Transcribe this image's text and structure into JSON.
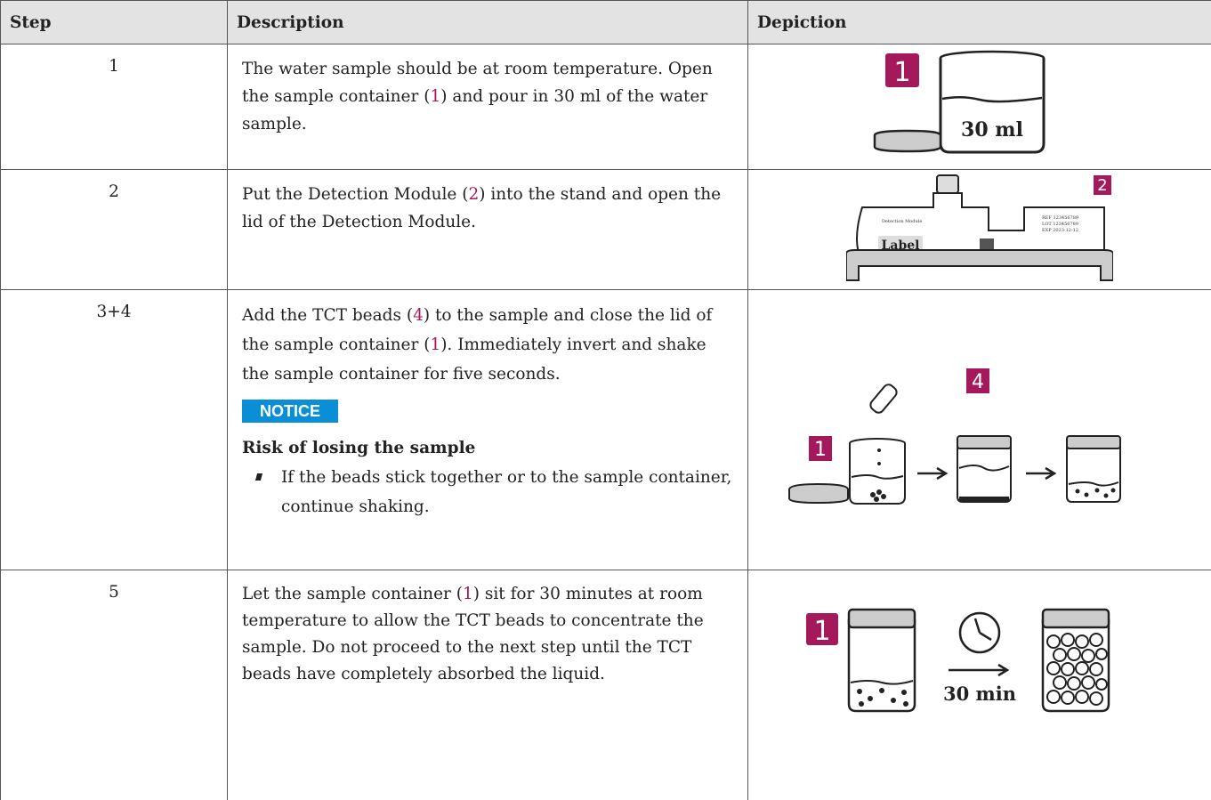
{
  "table": {
    "header": [
      "Step",
      "Description",
      "Depiction"
    ],
    "rows": [
      {
        "step": "1",
        "description": [
          "The water sample should be at room temperature. Open the sample container (",
          "1",
          ") and pour in 30 ml of the water sample."
        ],
        "depiction": {
          "callout": "1",
          "volume": "30 ml"
        }
      },
      {
        "step": "2",
        "description": [
          "Put the Detection Module (",
          "2",
          ") into the stand and open the lid of the Detection Module."
        ],
        "depiction": {
          "callout": "2",
          "module_name": "Detection Module",
          "label": "Label",
          "ref": "REF 123456789",
          "lot": "LOT 123456789",
          "exp": "EXP 2023-12-12"
        }
      },
      {
        "step": "3+4",
        "description": [
          "Add the TCT beads (",
          "4",
          ") to the sample and close the lid of the sample container (",
          "1",
          "). Immediately invert and shake the sample container for five seconds."
        ],
        "notice": {
          "badge": "NOTICE",
          "title": "Risk of losing the sample",
          "items": [
            "If the beads stick together or to the sample container, continue shaking."
          ]
        },
        "depiction": {
          "callouts": [
            "4",
            "1"
          ]
        }
      },
      {
        "step": "5",
        "description": [
          "Let the sample container (",
          "1",
          ") sit for 30 minutes at room temperature to allow the TCT beads to concentrate the sample. Do not proceed to the next step until the TCT beads have completely absorbed the liquid."
        ],
        "depiction": {
          "callout": "1",
          "duration": "30 min"
        }
      }
    ]
  }
}
